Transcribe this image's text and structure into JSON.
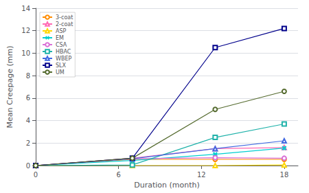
{
  "chart_data": {
    "type": "line",
    "xlabel": "Duration (month)",
    "ylabel": "Mean Creepage (mm)",
    "xlim": [
      0,
      19
    ],
    "ylim": [
      0,
      14
    ],
    "xticks": [
      0,
      6,
      12,
      18
    ],
    "yticks": [
      0,
      2,
      4,
      6,
      8,
      10,
      12,
      14
    ],
    "grid": true,
    "legend": "upper left",
    "series": [
      {
        "name": "3-coat",
        "x": [
          0,
          7,
          13,
          18
        ],
        "values": [
          0,
          0.55,
          0.55,
          0.55
        ],
        "color": "#FF8C00",
        "marker": "circle",
        "line_style": "solid"
      },
      {
        "name": "2-coat",
        "x": [
          0,
          7,
          13,
          18
        ],
        "values": [
          0,
          0.65,
          1.5,
          1.6
        ],
        "color": "#FF69B4",
        "marker": "triangle",
        "line_style": "solid"
      },
      {
        "name": "ASP",
        "x": [
          0,
          7,
          13,
          18
        ],
        "values": [
          0,
          0.0,
          0.0,
          0.05
        ],
        "color": "#FFD700",
        "marker": "triangle",
        "line_style": "solid"
      },
      {
        "name": "EM",
        "x": [
          0,
          7,
          13,
          18
        ],
        "values": [
          0,
          0.45,
          1.0,
          1.55
        ],
        "color": "#00CED1",
        "marker": "x",
        "line_style": "solid"
      },
      {
        "name": "CSA",
        "x": [
          0,
          7,
          13,
          18
        ],
        "values": [
          0,
          0.6,
          0.7,
          0.65
        ],
        "color": "#DA70D6",
        "marker": "circle",
        "line_style": "solid"
      },
      {
        "name": "HBAC",
        "x": [
          0,
          7,
          13,
          18
        ],
        "values": [
          0,
          0.05,
          2.5,
          3.7
        ],
        "color": "#20B2AA",
        "marker": "square",
        "line_style": "solid"
      },
      {
        "name": "WBEP",
        "x": [
          0,
          7,
          13,
          18
        ],
        "values": [
          0,
          0.6,
          1.5,
          2.2
        ],
        "color": "#4169E1",
        "marker": "triangle",
        "line_style": "solid"
      },
      {
        "name": "SLX",
        "x": [
          0,
          7,
          13,
          18
        ],
        "values": [
          0,
          0.65,
          10.5,
          12.2
        ],
        "color": "#00008B",
        "marker": "square",
        "line_style": "solid"
      },
      {
        "name": "UM",
        "x": [
          0,
          7,
          13,
          18
        ],
        "values": [
          0,
          0.65,
          5.0,
          6.6
        ],
        "color": "#556B2F",
        "marker": "circle",
        "line_style": "solid"
      }
    ]
  }
}
